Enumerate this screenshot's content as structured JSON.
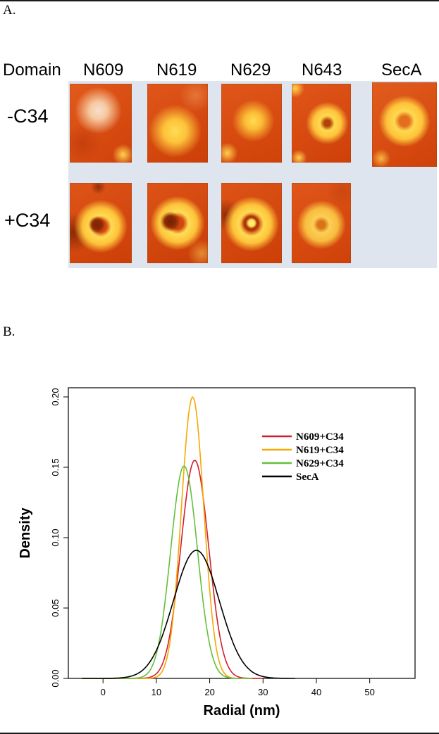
{
  "figure": {
    "panel_a_label": "A.",
    "panel_b_label": "B."
  },
  "panel_a": {
    "domain_header": "Domain",
    "columns": [
      "N609",
      "N619",
      "N629",
      "N643",
      "SecA"
    ],
    "rows": [
      {
        "label": "-C34"
      },
      {
        "label": "+C34"
      }
    ]
  },
  "chart_data": {
    "type": "line",
    "title": "",
    "xlabel": "Radial (nm)",
    "ylabel": "Density",
    "xlim": [
      -6.5,
      58.5
    ],
    "ylim": [
      0,
      0.2065
    ],
    "xticks": [
      0,
      10,
      20,
      30,
      40,
      50
    ],
    "yticks": [
      0,
      0.05,
      0.1,
      0.15,
      0.2
    ],
    "grid": false,
    "legend_position": "inside upper right",
    "legend": [
      "N609+C34",
      "N619+C34",
      "N629+C34",
      "SecA"
    ],
    "series": [
      {
        "name": "N609+C34",
        "color": "#d01f2f",
        "mean": 17.2,
        "sd": 2.6,
        "peak": 0.155,
        "xstart": -4,
        "xend": 30
      },
      {
        "name": "N619+C34",
        "color": "#f5a800",
        "mean": 16.8,
        "sd": 2.1,
        "peak": 0.2,
        "xstart": -4,
        "xend": 28
      },
      {
        "name": "N629+C34",
        "color": "#63c03c",
        "mean": 15.2,
        "sd": 2.5,
        "peak": 0.151,
        "xstart": -4,
        "xend": 28
      },
      {
        "name": "SecA",
        "color": "#000000",
        "mean": 17.5,
        "sd": 4.3,
        "peak": 0.091,
        "xstart": -4,
        "xend": 36
      }
    ]
  }
}
